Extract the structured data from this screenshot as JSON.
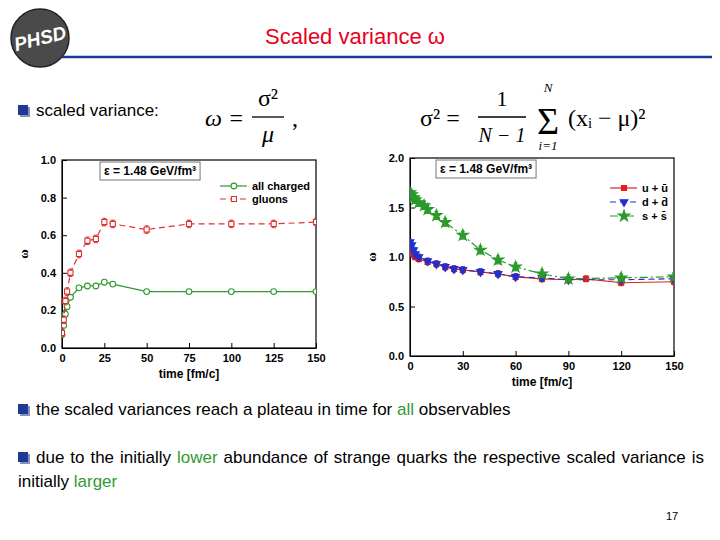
{
  "slide": {
    "logo": "PHSD",
    "title": "Scaled variance ω",
    "bullets": [
      [
        {
          "text": "scaled variance:"
        }
      ],
      [
        {
          "text": "the scaled variances reach a plateau in time for "
        },
        {
          "text": "all",
          "color": "#339933"
        },
        {
          "text": " observables"
        }
      ],
      [
        {
          "text": "due to the initially "
        },
        {
          "text": "lower",
          "color": "#339933"
        },
        {
          "text": " abundance of strange quarks the respective scaled variance is initially "
        },
        {
          "text": "larger",
          "color": "#339933"
        }
      ]
    ],
    "formulas": [
      {
        "lhs": "ω =",
        "numerator": "σ²",
        "denominator": "μ",
        "tail": ","
      },
      {
        "lhs": "σ² =",
        "numerator": "1",
        "denominator": "N − 1",
        "sum": "Σ",
        "sum_top": "N",
        "sum_bottom": "i=1",
        "rhs": "(xᵢ − μ)²"
      }
    ],
    "page_number": "17"
  },
  "chart_data": [
    {
      "type": "line",
      "annotations": [
        "ε = 1.48 GeV/fm³"
      ],
      "x_label": "time [fm/c]",
      "y_label": "ω",
      "xlim": [
        0,
        150
      ],
      "ylim": [
        0,
        1
      ],
      "xticks": [
        0,
        25,
        50,
        75,
        100,
        125,
        150
      ],
      "yticks": [
        {
          "value": 0,
          "label": "0.0"
        },
        0.2,
        0.4,
        0.6,
        0.8,
        {
          "value": 1,
          "label": "1.0"
        }
      ],
      "legend": "upper right",
      "series": [
        {
          "name": "all charged",
          "color": "#2e9a2e",
          "marker": "open-circle",
          "line_style": "solid",
          "x": [
            0,
            1,
            2,
            3,
            5,
            10,
            15,
            20,
            25,
            30,
            50,
            75,
            100,
            125,
            150
          ],
          "values": [
            0.07,
            0.12,
            0.18,
            0.22,
            0.27,
            0.32,
            0.33,
            0.33,
            0.35,
            0.34,
            0.3,
            0.3,
            0.3,
            0.3,
            0.3
          ],
          "errors": [
            0.01,
            0.01,
            0.01,
            0.01,
            0.01,
            0.01,
            0.01,
            0.01,
            0.01,
            0.01,
            0.01,
            0.01,
            0.01,
            0.01,
            0.01
          ]
        },
        {
          "name": "gluons",
          "color": "#e03030",
          "marker": "open-square",
          "line_style": "dashed",
          "x": [
            0,
            1,
            2,
            3,
            5,
            10,
            15,
            20,
            25,
            30,
            50,
            75,
            100,
            125,
            150
          ],
          "values": [
            0.08,
            0.15,
            0.25,
            0.3,
            0.4,
            0.5,
            0.57,
            0.58,
            0.67,
            0.66,
            0.63,
            0.66,
            0.66,
            0.66,
            0.67
          ],
          "errors": [
            0.02,
            0.02,
            0.02,
            0.02,
            0.02,
            0.02,
            0.02,
            0.02,
            0.02,
            0.02,
            0.02,
            0.02,
            0.02,
            0.02,
            0.02
          ]
        }
      ]
    },
    {
      "type": "line",
      "annotations": [
        "ε = 1.48 GeV/fm³"
      ],
      "x_label": "time [fm/c]",
      "y_label": "ω",
      "xlim": [
        0,
        150
      ],
      "ylim": [
        0,
        2
      ],
      "xticks": [
        0,
        30,
        60,
        90,
        120,
        150
      ],
      "yticks": [
        {
          "value": 0,
          "label": "0.0"
        },
        0.5,
        {
          "value": 1,
          "label": "1.0"
        },
        1.5,
        {
          "value": 2,
          "label": "2.0"
        }
      ],
      "legend": "upper right",
      "series": [
        {
          "name": "u + ū",
          "color": "#e02020",
          "marker": "square",
          "line_style": "solid",
          "x": [
            0,
            1,
            2,
            3,
            5,
            10,
            15,
            20,
            25,
            30,
            40,
            50,
            60,
            75,
            90,
            100,
            120,
            150
          ],
          "values": [
            1.08,
            1.05,
            1.02,
            1.0,
            0.98,
            0.95,
            0.93,
            0.9,
            0.88,
            0.87,
            0.85,
            0.83,
            0.8,
            0.78,
            0.77,
            0.78,
            0.74,
            0.75
          ],
          "errors": [
            0.03,
            0.03,
            0.03,
            0.03,
            0.03,
            0.03,
            0.03,
            0.03,
            0.03,
            0.03,
            0.03,
            0.03,
            0.03,
            0.03,
            0.03,
            0.03,
            0.03,
            0.03
          ]
        },
        {
          "name": "d + d̄",
          "color": "#2030d0",
          "marker": "triangle-down",
          "line_style": "dashed",
          "x": [
            0,
            1,
            2,
            3,
            5,
            10,
            15,
            20,
            25,
            30,
            40,
            50,
            60,
            75,
            90,
            120,
            150
          ],
          "values": [
            1.15,
            1.12,
            1.07,
            1.03,
            1.0,
            0.96,
            0.93,
            0.9,
            0.88,
            0.87,
            0.85,
            0.83,
            0.8,
            0.79,
            0.77,
            0.77,
            0.78
          ],
          "errors": [
            0.03,
            0.03,
            0.03,
            0.03,
            0.03,
            0.03,
            0.03,
            0.03,
            0.03,
            0.03,
            0.03,
            0.03,
            0.03,
            0.03,
            0.03,
            0.03,
            0.03
          ]
        },
        {
          "name": "s + s̄",
          "color": "#2a9a2a",
          "marker": "star",
          "line_style": "dashdot",
          "x": [
            0,
            1,
            2,
            3,
            5,
            8,
            10,
            15,
            20,
            30,
            40,
            50,
            60,
            75,
            90,
            120,
            150
          ],
          "values": [
            1.65,
            1.63,
            1.6,
            1.58,
            1.55,
            1.52,
            1.48,
            1.42,
            1.35,
            1.22,
            1.07,
            0.97,
            0.9,
            0.83,
            0.78,
            0.79,
            0.8
          ],
          "errors": [
            0.04,
            0.04,
            0.04,
            0.04,
            0.04,
            0.04,
            0.04,
            0.04,
            0.04,
            0.04,
            0.04,
            0.04,
            0.04,
            0.04,
            0.04,
            0.04,
            0.04
          ]
        }
      ]
    }
  ]
}
